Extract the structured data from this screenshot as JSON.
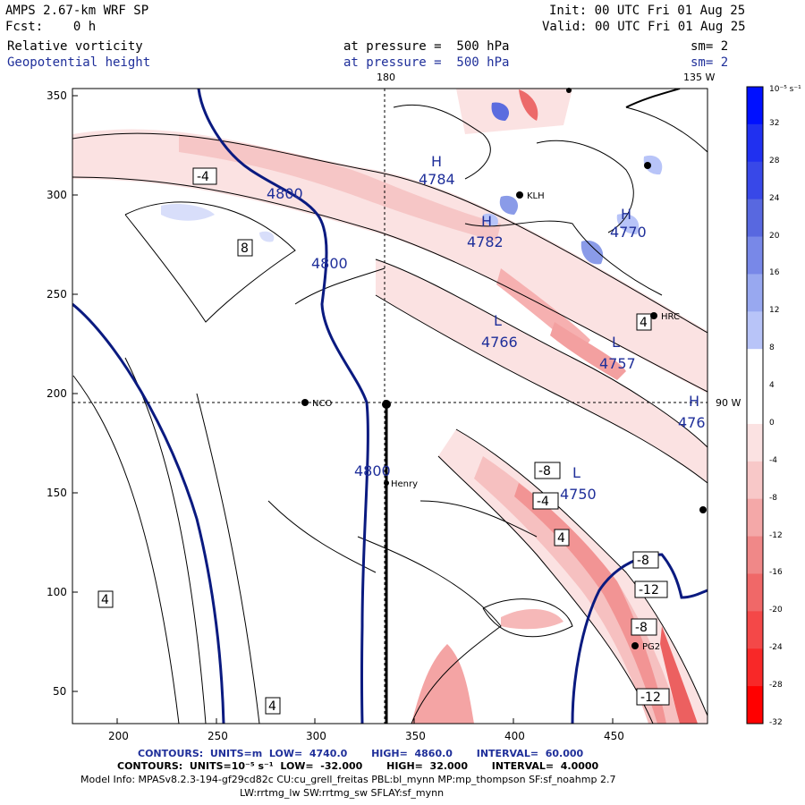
{
  "header": {
    "model": "AMPS 2.67-km WRF SP",
    "fcst": "Fcst:    0 h",
    "init": "Init: 00 UTC Fri 01 Aug 25",
    "valid": "Valid: 00 UTC Fri 01 Aug 25",
    "field1": "Relative vorticity",
    "field2": "Geopotential height",
    "press1": "at pressure =  500 hPa",
    "press2": "at pressure =  500 hPa",
    "sm1": "sm= 2",
    "sm2": "sm= 2"
  },
  "map": {
    "lon_top_left": "180",
    "lon_top_right": "135 W",
    "lon_right": "90 W",
    "x_ticks": [
      "200",
      "250",
      "300",
      "350",
      "400",
      "450"
    ],
    "y_ticks": [
      "350",
      "300",
      "250",
      "200",
      "150",
      "100",
      "50"
    ],
    "height_labels": [
      "4800",
      "4800",
      "4800"
    ],
    "centers": [
      {
        "type": "H",
        "value": "4784"
      },
      {
        "type": "H",
        "value": "4782"
      },
      {
        "type": "H",
        "value": "4770"
      },
      {
        "type": "L",
        "value": "4766"
      },
      {
        "type": "L",
        "value": "4757"
      },
      {
        "type": "L",
        "value": "4750"
      },
      {
        "type": "H",
        "value": "476"
      }
    ],
    "vort_boxes": [
      "-4",
      "8",
      "4",
      "-8",
      "-4",
      "4",
      "-8",
      "-12",
      "-8",
      "-12",
      "4",
      "4"
    ],
    "stations": [
      "NCO",
      "Henry",
      "KLH",
      "HRC",
      "PG2"
    ]
  },
  "colorbar": {
    "unit": "10⁻⁵ s⁻¹",
    "labels": [
      "32",
      "28",
      "24",
      "20",
      "16",
      "12",
      "8",
      "4",
      "0",
      "-4",
      "-8",
      "-12",
      "-16",
      "-20",
      "-24",
      "-28",
      "-32"
    ],
    "colors": [
      "#0010ff",
      "#2030f0",
      "#3848e8",
      "#5868e0",
      "#7888e8",
      "#98a8f0",
      "#b8c4f8",
      "#ffffff",
      "#ffffff",
      "#fbe2e2",
      "#f8c8c8",
      "#f4a8a8",
      "#f08888",
      "#f06868",
      "#f44848",
      "#f82828",
      "#ff0000"
    ]
  },
  "footer": {
    "contours1": "CONTOURS:  UNITS=m  LOW=  4740.0       HIGH=  4860.0       INTERVAL=  60.000",
    "contours2": "CONTOURS:  UNITS=10⁻⁵ s⁻¹  LOW=  -32.000       HIGH=  32.000       INTERVAL=  4.0000",
    "model_info": "Model Info: MPASv8.2.3-194-gf29cd82c CU:cu_grell_freitas PBL:bl_mynn MP:mp_thompson SF:sf_noahmp 2.7",
    "model_info2": "LW:rrtmg_lw SW:rrtmg_sw SFLAY:sf_mynn"
  }
}
